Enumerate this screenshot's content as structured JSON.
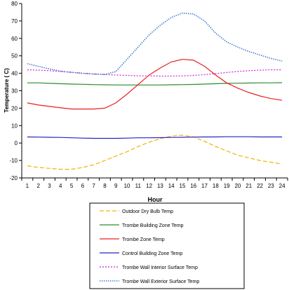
{
  "chart_data": {
    "type": "line",
    "title": "",
    "xlabel": "Hour",
    "ylabel": "Temperature ( C)",
    "x": [
      1,
      2,
      3,
      4,
      5,
      6,
      7,
      8,
      9,
      10,
      11,
      12,
      13,
      14,
      15,
      16,
      17,
      18,
      19,
      20,
      21,
      22,
      23,
      24
    ],
    "ylim": [
      -20,
      80
    ],
    "yticks": [
      -20,
      -10,
      0,
      10,
      20,
      30,
      40,
      50,
      60,
      70,
      80
    ],
    "grid": false,
    "legend_position": "bottom",
    "series": [
      {
        "name": "Outdoor Dry Bulb Temp",
        "color": "#f0b400",
        "dash": "dashed",
        "values": [
          -13,
          -14,
          -14.5,
          -15,
          -15,
          -14,
          -12.5,
          -10,
          -7.5,
          -5,
          -2,
          0.5,
          2.5,
          4,
          4.5,
          3.5,
          1,
          -2,
          -4.5,
          -7,
          -8.5,
          -10,
          -11,
          -12
        ]
      },
      {
        "name": "Trombe Building Zone Temp",
        "color": "#2e8b2e",
        "dash": "solid",
        "values": [
          34.5,
          34.5,
          34.2,
          34,
          33.8,
          33.7,
          33.5,
          33.4,
          33.3,
          33.3,
          33.3,
          33.3,
          33.3,
          33.4,
          33.5,
          33.6,
          33.8,
          34,
          34.2,
          34.3,
          34.4,
          34.5,
          34.5,
          34.6
        ]
      },
      {
        "name": "Trombe Zone Temp",
        "color": "#e8201e",
        "dash": "solid",
        "values": [
          23,
          21.8,
          21,
          20.2,
          19.5,
          19.5,
          19.5,
          20,
          23,
          28,
          33.5,
          39,
          43,
          46.5,
          48,
          47.5,
          44,
          39,
          34.5,
          31.5,
          29,
          27,
          25.5,
          24.5
        ]
      },
      {
        "name": "Control Building Zone Temp",
        "color": "#2424c8",
        "dash": "solid",
        "values": [
          3.5,
          3.4,
          3.3,
          3.2,
          3,
          2.8,
          2.7,
          2.7,
          2.7,
          2.8,
          3,
          3,
          3.1,
          3.2,
          3.3,
          3.4,
          3.5,
          3.5,
          3.6,
          3.6,
          3.6,
          3.5,
          3.5,
          3.5
        ]
      },
      {
        "name": "Trombe Wall Interior Surface Temp",
        "color": "#d020d0",
        "dash": "dotted",
        "values": [
          42,
          41.8,
          41.5,
          41,
          40.6,
          40,
          39.6,
          39.3,
          39,
          38.8,
          38.5,
          38.5,
          38.4,
          38.4,
          38.5,
          38.8,
          39.2,
          39.8,
          40.5,
          41,
          41.5,
          41.8,
          42,
          42
        ]
      },
      {
        "name": "Trombe Wall Exterior Surface Temp",
        "color": "#4a7fd6",
        "dash": "densedot",
        "values": [
          45.5,
          44,
          42.5,
          41.2,
          40.5,
          40,
          39.5,
          39.3,
          41,
          48,
          55,
          62,
          67.5,
          72,
          74.5,
          74,
          70,
          63,
          58,
          55,
          52.5,
          50.5,
          48.5,
          47
        ]
      }
    ]
  }
}
